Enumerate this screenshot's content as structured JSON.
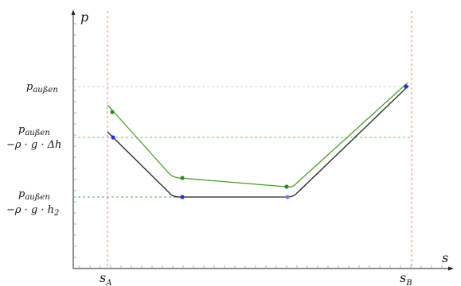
{
  "chart_data": {
    "type": "line",
    "title": "",
    "xlabel": "s",
    "ylabel": "p",
    "x_ticks": [
      {
        "x": "s_A",
        "label": "s",
        "sub": "A"
      },
      {
        "x": "s_B",
        "label": "s",
        "sub": "B"
      }
    ],
    "y_levels": [
      {
        "name": "p_außen",
        "line1": "p",
        "line1_sub": "außen",
        "line2": ""
      },
      {
        "name": "p_außen − ρ·g·Δh",
        "line1": "p",
        "line1_sub": "außen",
        "line2": "−ρ · g · Δh"
      },
      {
        "name": "p_außen − ρ·g·h₂",
        "line1": "p",
        "line1_sub": "außen",
        "line2": "−ρ · g · h",
        "line2_sub": "2"
      }
    ],
    "series": [
      {
        "color": "#4a9a2a",
        "marker_color": "#2e8b22",
        "points": [
          [
            0.0,
            0.47
          ],
          [
            0.0,
            0.61
          ],
          [
            0.3,
            0.36
          ],
          [
            0.7,
            0.32
          ],
          [
            1.0,
            0.96
          ]
        ],
        "markers": [
          1,
          2,
          3
        ]
      },
      {
        "color": "#222222",
        "marker_color": "#2233cc",
        "points": [
          [
            0.0,
            0.51
          ],
          [
            0.0,
            0.52
          ],
          [
            0.3,
            0.27
          ],
          [
            0.6,
            0.27
          ],
          [
            1.0,
            0.96
          ]
        ],
        "markers": [
          1,
          2,
          3,
          4
        ]
      }
    ],
    "reference_lines": {
      "vertical_color": "#f08080",
      "horizontal_color_top": "#c8c8c8",
      "horizontal_color_mid": "#6fbf5a",
      "horizontal_color_low": "#4caf50"
    },
    "grid": false
  }
}
